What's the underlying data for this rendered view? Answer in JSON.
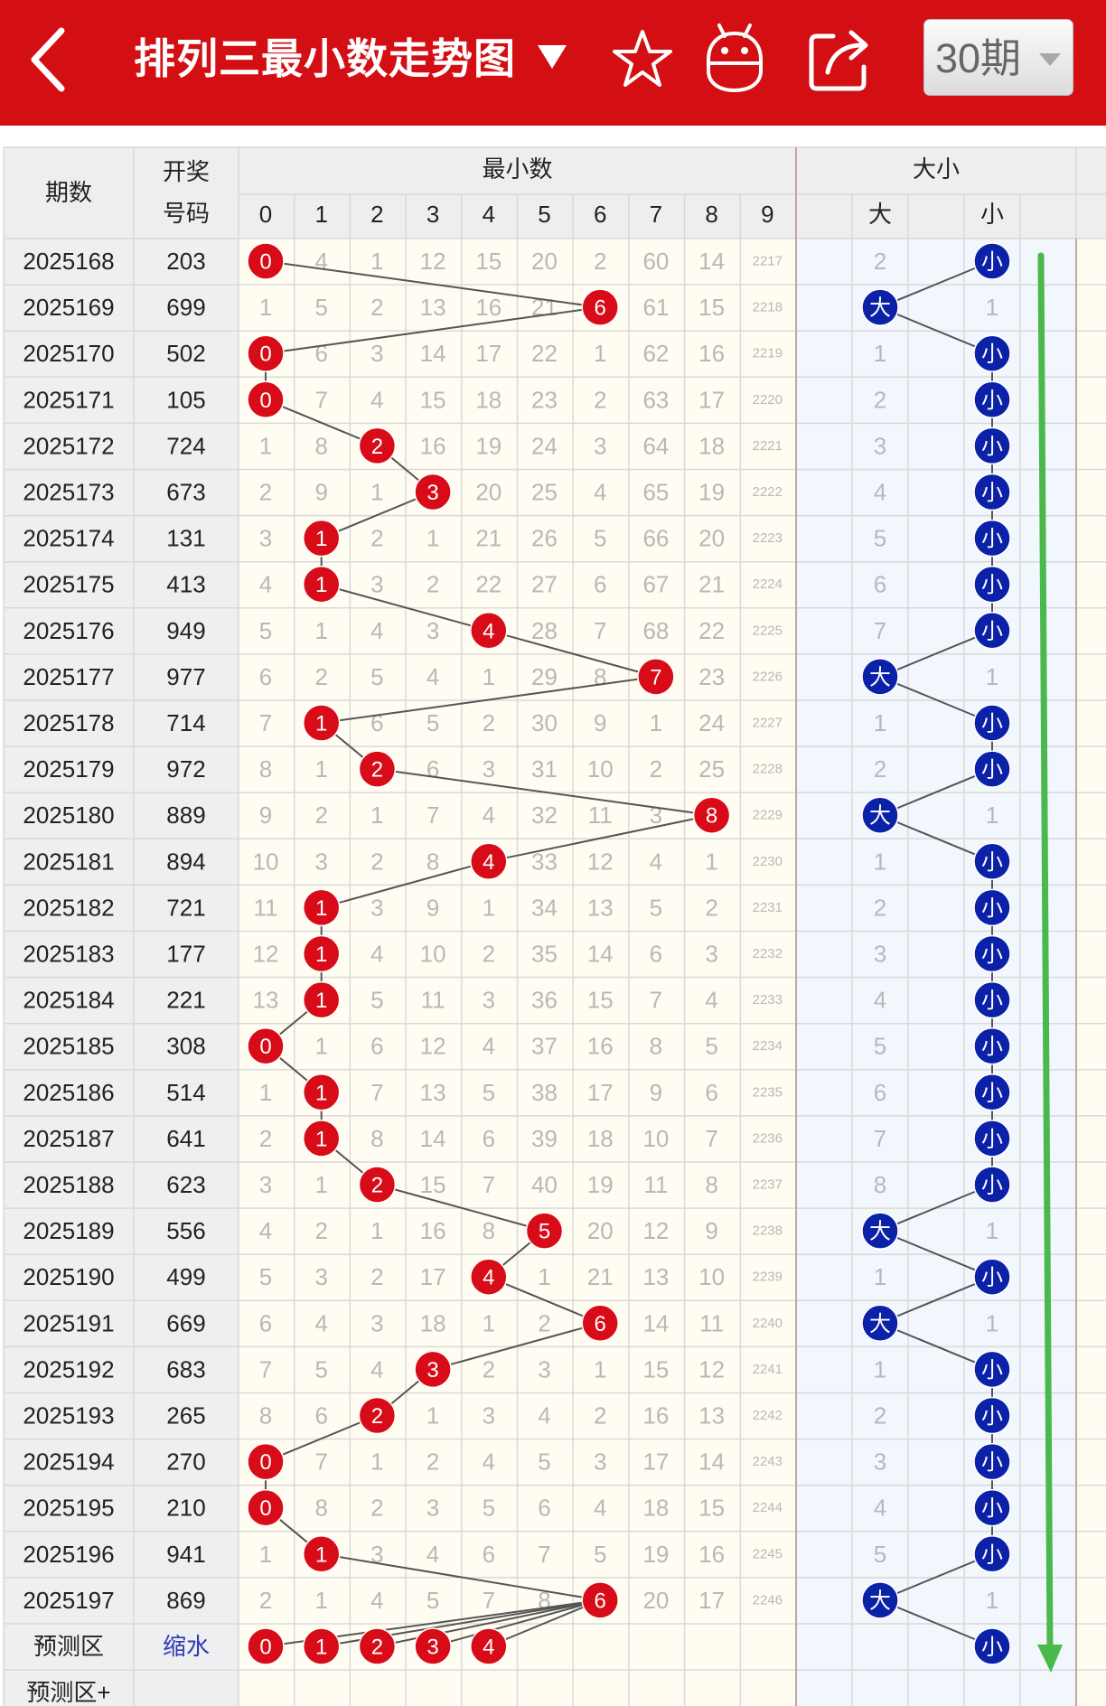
{
  "header": {
    "title": "排列三最小数走势图",
    "period_selector": "30期"
  },
  "table": {
    "headers": {
      "period": "期数",
      "draw_line1": "开奖",
      "draw_line2": "号码",
      "min_group": "最小数",
      "min_cols": [
        "0",
        "1",
        "2",
        "3",
        "4",
        "5",
        "6",
        "7",
        "8",
        "9"
      ],
      "size_group": "大小",
      "size_cols": [
        "大",
        "小"
      ]
    },
    "rows": [
      {
        "period": "2025168",
        "draw": "203",
        "min": 0,
        "size": "小",
        "miss": [
          "0",
          "4",
          "1",
          "12",
          "15",
          "20",
          "2",
          "60",
          "14",
          "2217"
        ],
        "size_miss": [
          "2",
          "小"
        ]
      },
      {
        "period": "2025169",
        "draw": "699",
        "min": 6,
        "size": "大",
        "miss": [
          "1",
          "5",
          "2",
          "13",
          "16",
          "21",
          "6",
          "61",
          "15",
          "2218"
        ],
        "size_miss": [
          "大",
          "1"
        ]
      },
      {
        "period": "2025170",
        "draw": "502",
        "min": 0,
        "size": "小",
        "miss": [
          "0",
          "6",
          "3",
          "14",
          "17",
          "22",
          "1",
          "62",
          "16",
          "2219"
        ],
        "size_miss": [
          "1",
          "小"
        ]
      },
      {
        "period": "2025171",
        "draw": "105",
        "min": 0,
        "size": "小",
        "miss": [
          "0",
          "7",
          "4",
          "15",
          "18",
          "23",
          "2",
          "63",
          "17",
          "2220"
        ],
        "size_miss": [
          "2",
          "小"
        ]
      },
      {
        "period": "2025172",
        "draw": "724",
        "min": 2,
        "size": "小",
        "miss": [
          "1",
          "8",
          "2",
          "16",
          "19",
          "24",
          "3",
          "64",
          "18",
          "2221"
        ],
        "size_miss": [
          "3",
          "小"
        ]
      },
      {
        "period": "2025173",
        "draw": "673",
        "min": 3,
        "size": "小",
        "miss": [
          "2",
          "9",
          "1",
          "3",
          "20",
          "25",
          "4",
          "65",
          "19",
          "2222"
        ],
        "size_miss": [
          "4",
          "小"
        ]
      },
      {
        "period": "2025174",
        "draw": "131",
        "min": 1,
        "size": "小",
        "miss": [
          "3",
          "1",
          "2",
          "1",
          "21",
          "26",
          "5",
          "66",
          "20",
          "2223"
        ],
        "size_miss": [
          "5",
          "小"
        ]
      },
      {
        "period": "2025175",
        "draw": "413",
        "min": 1,
        "size": "小",
        "miss": [
          "4",
          "1",
          "3",
          "2",
          "22",
          "27",
          "6",
          "67",
          "21",
          "2224"
        ],
        "size_miss": [
          "6",
          "小"
        ]
      },
      {
        "period": "2025176",
        "draw": "949",
        "min": 4,
        "size": "小",
        "miss": [
          "5",
          "1",
          "4",
          "3",
          "4",
          "28",
          "7",
          "68",
          "22",
          "2225"
        ],
        "size_miss": [
          "7",
          "小"
        ]
      },
      {
        "period": "2025177",
        "draw": "977",
        "min": 7,
        "size": "大",
        "miss": [
          "6",
          "2",
          "5",
          "4",
          "1",
          "29",
          "8",
          "7",
          "23",
          "2226"
        ],
        "size_miss": [
          "大",
          "1"
        ]
      },
      {
        "period": "2025178",
        "draw": "714",
        "min": 1,
        "size": "小",
        "miss": [
          "7",
          "1",
          "6",
          "5",
          "2",
          "30",
          "9",
          "1",
          "24",
          "2227"
        ],
        "size_miss": [
          "1",
          "小"
        ]
      },
      {
        "period": "2025179",
        "draw": "972",
        "min": 2,
        "size": "小",
        "miss": [
          "8",
          "1",
          "2",
          "6",
          "3",
          "31",
          "10",
          "2",
          "25",
          "2228"
        ],
        "size_miss": [
          "2",
          "小"
        ]
      },
      {
        "period": "2025180",
        "draw": "889",
        "min": 8,
        "size": "大",
        "miss": [
          "9",
          "2",
          "1",
          "7",
          "4",
          "32",
          "11",
          "3",
          "8",
          "2229"
        ],
        "size_miss": [
          "大",
          "1"
        ]
      },
      {
        "period": "2025181",
        "draw": "894",
        "min": 4,
        "size": "小",
        "miss": [
          "10",
          "3",
          "2",
          "8",
          "4",
          "33",
          "12",
          "4",
          "1",
          "2230"
        ],
        "size_miss": [
          "1",
          "小"
        ]
      },
      {
        "period": "2025182",
        "draw": "721",
        "min": 1,
        "size": "小",
        "miss": [
          "11",
          "1",
          "3",
          "9",
          "1",
          "34",
          "13",
          "5",
          "2",
          "2231"
        ],
        "size_miss": [
          "2",
          "小"
        ]
      },
      {
        "period": "2025183",
        "draw": "177",
        "min": 1,
        "size": "小",
        "miss": [
          "12",
          "1",
          "4",
          "10",
          "2",
          "35",
          "14",
          "6",
          "3",
          "2232"
        ],
        "size_miss": [
          "3",
          "小"
        ]
      },
      {
        "period": "2025184",
        "draw": "221",
        "min": 1,
        "size": "小",
        "miss": [
          "13",
          "1",
          "5",
          "11",
          "3",
          "36",
          "15",
          "7",
          "4",
          "2233"
        ],
        "size_miss": [
          "4",
          "小"
        ]
      },
      {
        "period": "2025185",
        "draw": "308",
        "min": 0,
        "size": "小",
        "miss": [
          "0",
          "1",
          "6",
          "12",
          "4",
          "37",
          "16",
          "8",
          "5",
          "2234"
        ],
        "size_miss": [
          "5",
          "小"
        ]
      },
      {
        "period": "2025186",
        "draw": "514",
        "min": 1,
        "size": "小",
        "miss": [
          "1",
          "1",
          "7",
          "13",
          "5",
          "38",
          "17",
          "9",
          "6",
          "2235"
        ],
        "size_miss": [
          "6",
          "小"
        ]
      },
      {
        "period": "2025187",
        "draw": "641",
        "min": 1,
        "size": "小",
        "miss": [
          "2",
          "1",
          "8",
          "14",
          "6",
          "39",
          "18",
          "10",
          "7",
          "2236"
        ],
        "size_miss": [
          "7",
          "小"
        ]
      },
      {
        "period": "2025188",
        "draw": "623",
        "min": 2,
        "size": "小",
        "miss": [
          "3",
          "1",
          "2",
          "15",
          "7",
          "40",
          "19",
          "11",
          "8",
          "2237"
        ],
        "size_miss": [
          "8",
          "小"
        ]
      },
      {
        "period": "2025189",
        "draw": "556",
        "min": 5,
        "size": "大",
        "miss": [
          "4",
          "2",
          "1",
          "16",
          "8",
          "5",
          "20",
          "12",
          "9",
          "2238"
        ],
        "size_miss": [
          "大",
          "1"
        ]
      },
      {
        "period": "2025190",
        "draw": "499",
        "min": 4,
        "size": "小",
        "miss": [
          "5",
          "3",
          "2",
          "17",
          "4",
          "1",
          "21",
          "13",
          "10",
          "2239"
        ],
        "size_miss": [
          "1",
          "小"
        ]
      },
      {
        "period": "2025191",
        "draw": "669",
        "min": 6,
        "size": "大",
        "miss": [
          "6",
          "4",
          "3",
          "18",
          "1",
          "2",
          "6",
          "14",
          "11",
          "2240"
        ],
        "size_miss": [
          "大",
          "1"
        ]
      },
      {
        "period": "2025192",
        "draw": "683",
        "min": 3,
        "size": "小",
        "miss": [
          "7",
          "5",
          "4",
          "3",
          "2",
          "3",
          "1",
          "15",
          "12",
          "2241"
        ],
        "size_miss": [
          "1",
          "小"
        ]
      },
      {
        "period": "2025193",
        "draw": "265",
        "min": 2,
        "size": "小",
        "miss": [
          "8",
          "6",
          "2",
          "1",
          "3",
          "4",
          "2",
          "16",
          "13",
          "2242"
        ],
        "size_miss": [
          "2",
          "小"
        ]
      },
      {
        "period": "2025194",
        "draw": "270",
        "min": 0,
        "size": "小",
        "miss": [
          "0",
          "7",
          "1",
          "2",
          "4",
          "5",
          "3",
          "17",
          "14",
          "2243"
        ],
        "size_miss": [
          "3",
          "小"
        ]
      },
      {
        "period": "2025195",
        "draw": "210",
        "min": 0,
        "size": "小",
        "miss": [
          "0",
          "8",
          "2",
          "3",
          "5",
          "6",
          "4",
          "18",
          "15",
          "2244"
        ],
        "size_miss": [
          "4",
          "小"
        ]
      },
      {
        "period": "2025196",
        "draw": "941",
        "min": 1,
        "size": "小",
        "miss": [
          "1",
          "1",
          "3",
          "4",
          "6",
          "7",
          "5",
          "19",
          "16",
          "2245"
        ],
        "size_miss": [
          "5",
          "小"
        ]
      },
      {
        "period": "2025197",
        "draw": "869",
        "min": 6,
        "size": "大",
        "miss": [
          "2",
          "1",
          "4",
          "5",
          "7",
          "8",
          "6",
          "20",
          "17",
          "2246"
        ],
        "size_miss": [
          "大",
          "1"
        ]
      }
    ],
    "forecast": {
      "label": "预测区",
      "action": "缩水",
      "balls": [
        "0",
        "1",
        "2",
        "3",
        "4"
      ],
      "size_ball": "小"
    },
    "forecast_plus": {
      "label": "预测区+"
    }
  },
  "colors": {
    "header_bg": "#d40f14",
    "red_ball": "#d80c18",
    "blue_ball": "#0b22a8",
    "green_arrow": "#4ab84a",
    "link_blue": "#2c3ab5"
  }
}
